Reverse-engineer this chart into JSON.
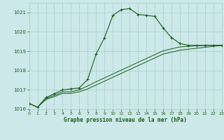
{
  "title": "Graphe pression niveau de la mer (hPa)",
  "background_color": "#cce8e8",
  "grid_color": "#aacece",
  "line_color": "#1a5c1a",
  "xmin": 0,
  "xmax": 23,
  "ymin": 1016,
  "ymax": 1021.5,
  "yticks": [
    1016,
    1017,
    1018,
    1019,
    1020,
    1021
  ],
  "xticks": [
    0,
    1,
    2,
    3,
    4,
    5,
    6,
    7,
    8,
    9,
    10,
    11,
    12,
    13,
    14,
    15,
    16,
    17,
    18,
    19,
    20,
    21,
    22,
    23
  ],
  "series1_x": [
    0,
    1,
    2,
    3,
    4,
    5,
    6,
    7,
    8,
    9,
    10,
    11,
    12,
    13,
    14,
    15,
    16,
    17,
    18,
    19,
    20,
    21,
    22,
    23
  ],
  "series1_y": [
    1016.3,
    1016.1,
    1016.6,
    1016.8,
    1017.0,
    1017.05,
    1017.1,
    1017.55,
    1018.85,
    1019.7,
    1020.85,
    1021.15,
    1021.2,
    1020.9,
    1020.85,
    1020.8,
    1020.2,
    1019.7,
    1019.4,
    1019.3,
    1019.3,
    1019.3,
    1019.3,
    1019.3
  ],
  "series2_x": [
    0,
    1,
    2,
    3,
    4,
    5,
    6,
    7,
    8,
    9,
    10,
    11,
    12,
    13,
    14,
    15,
    16,
    17,
    18,
    19,
    20,
    21,
    22,
    23
  ],
  "series2_y": [
    1016.3,
    1016.1,
    1016.55,
    1016.72,
    1016.9,
    1016.9,
    1017.0,
    1017.2,
    1017.42,
    1017.62,
    1017.82,
    1018.02,
    1018.22,
    1018.42,
    1018.62,
    1018.82,
    1019.02,
    1019.12,
    1019.22,
    1019.25,
    1019.28,
    1019.3,
    1019.3,
    1019.3
  ],
  "series3_x": [
    0,
    1,
    2,
    3,
    4,
    5,
    6,
    7,
    8,
    9,
    10,
    11,
    12,
    13,
    14,
    15,
    16,
    17,
    18,
    19,
    20,
    21,
    22,
    23
  ],
  "series3_y": [
    1016.3,
    1016.1,
    1016.5,
    1016.65,
    1016.82,
    1016.82,
    1016.9,
    1017.05,
    1017.25,
    1017.45,
    1017.65,
    1017.85,
    1018.05,
    1018.25,
    1018.45,
    1018.65,
    1018.85,
    1018.95,
    1019.05,
    1019.1,
    1019.15,
    1019.2,
    1019.25,
    1019.3
  ]
}
